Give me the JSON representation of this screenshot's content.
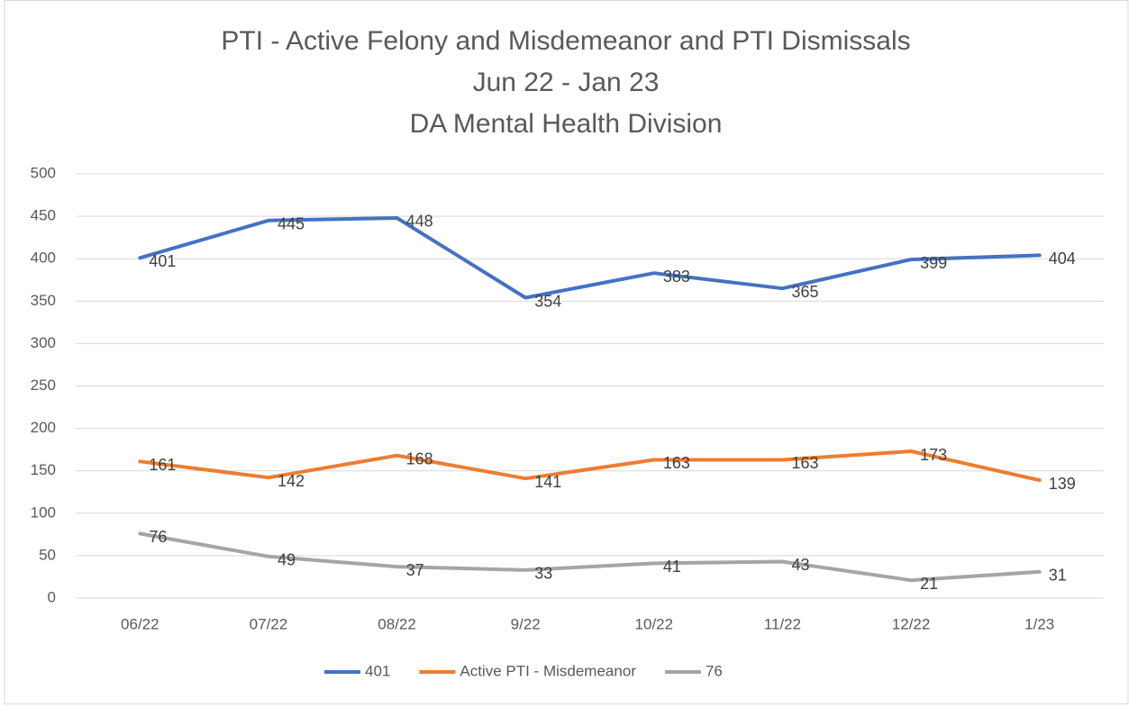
{
  "chart_data": {
    "type": "line",
    "title": [
      "PTI - Active Felony and Misdemeanor and PTI Dismissals",
      "Jun 22 - Jan 23",
      "DA Mental Health Division"
    ],
    "categories": [
      "06/22",
      "07/22",
      "08/22",
      "9/22",
      "10/22",
      "11/22",
      "12/22",
      "1/23"
    ],
    "series": [
      {
        "name": "401",
        "color": "#4472c4",
        "values": [
          401,
          445,
          448,
          354,
          383,
          365,
          399,
          404
        ]
      },
      {
        "name": "Active PTI - Misdemeanor",
        "color": "#ed7d31",
        "values": [
          161,
          142,
          168,
          141,
          163,
          163,
          173,
          139
        ]
      },
      {
        "name": "76",
        "color": "#a5a5a5",
        "values": [
          76,
          49,
          37,
          33,
          41,
          43,
          21,
          31
        ]
      }
    ],
    "ylim": [
      0,
      500
    ],
    "yticks": [
      0,
      50,
      100,
      150,
      200,
      250,
      300,
      350,
      400,
      450,
      500
    ],
    "grid": true,
    "legend": "bottom"
  }
}
